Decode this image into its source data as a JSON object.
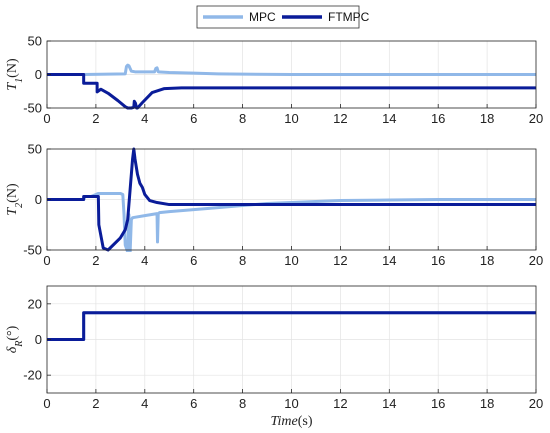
{
  "legend": {
    "items": [
      "MPC",
      "FTMPC"
    ],
    "colors": [
      "#90B8E8",
      "#0A1C99"
    ]
  },
  "chart_data": [
    {
      "type": "line",
      "ylabel": "T1(N)",
      "xlim": [
        0,
        20
      ],
      "ylim": [
        -50,
        50
      ],
      "xticks": [
        0,
        2,
        4,
        6,
        8,
        10,
        12,
        14,
        16,
        18,
        20
      ],
      "yticks": [
        -50,
        0,
        50
      ],
      "grid": true,
      "series": [
        {
          "name": "MPC",
          "x": [
            0,
            1.5,
            3.2,
            3.25,
            3.3,
            3.35,
            3.4,
            3.45,
            3.6,
            4.4,
            4.45,
            4.5,
            4.55,
            5,
            6,
            7,
            8,
            10,
            12,
            14,
            16,
            18,
            20
          ],
          "y": [
            0,
            0,
            1,
            12,
            14,
            13,
            9,
            5,
            4,
            4,
            9,
            10,
            4,
            3,
            2,
            1,
            0.5,
            0,
            0,
            0,
            0,
            0,
            0
          ]
        },
        {
          "name": "FTMPC",
          "x": [
            0,
            1.5,
            1.5,
            2.05,
            2.05,
            2.2,
            2.5,
            2.9,
            3.2,
            3.3,
            3.45,
            3.55,
            3.57,
            3.62,
            3.66,
            3.7,
            3.9,
            4.3,
            4.8,
            5.5,
            20
          ],
          "y": [
            0,
            0,
            -13,
            -13,
            -26,
            -22,
            -28,
            -39,
            -48,
            -50,
            -50,
            -49,
            -40,
            -43,
            -50,
            -50,
            -42,
            -27,
            -21,
            -20,
            -20
          ]
        }
      ]
    },
    {
      "type": "line",
      "ylabel": "T2(N)",
      "xlim": [
        0,
        20
      ],
      "ylim": [
        -50,
        50
      ],
      "xticks": [
        0,
        2,
        4,
        6,
        8,
        10,
        12,
        14,
        16,
        18,
        20
      ],
      "yticks": [
        -50,
        0,
        50
      ],
      "grid": true,
      "series": [
        {
          "name": "MPC",
          "x": [
            0,
            1.5,
            1.55,
            1.8,
            2.0,
            2.1,
            2.5,
            3.0,
            3.1,
            3.15,
            3.2,
            3.3,
            3.35,
            3.4,
            3.45,
            3.5,
            4.0,
            4.5,
            4.52,
            4.55,
            4.6,
            5,
            6,
            7,
            8,
            9,
            10,
            12,
            14,
            16,
            18,
            20
          ],
          "y": [
            0,
            0,
            3,
            3,
            5,
            6,
            6,
            6,
            5,
            -15,
            -45,
            -52,
            -15,
            -52,
            -20,
            -18,
            -16,
            -14,
            -42,
            -14,
            -13,
            -12,
            -10,
            -8,
            -6,
            -4,
            -3,
            -1,
            -0.5,
            0,
            0,
            0
          ]
        },
        {
          "name": "FTMPC",
          "x": [
            0,
            1.5,
            1.5,
            2.1,
            2.12,
            2.3,
            2.5,
            3.0,
            3.2,
            3.3,
            3.4,
            3.5,
            3.55,
            3.6,
            3.7,
            3.8,
            3.9,
            4.0,
            4.2,
            4.5,
            5.0,
            6.0,
            8.0,
            10,
            20
          ],
          "y": [
            0,
            0,
            3,
            3,
            -25,
            -48,
            -50,
            -38,
            -30,
            -20,
            10,
            40,
            50,
            40,
            25,
            16,
            12,
            5,
            -1,
            -3,
            -5,
            -5,
            -5,
            -5,
            -5
          ]
        }
      ]
    },
    {
      "type": "line",
      "ylabel": "δR(°)",
      "xlabel": "Time(s)",
      "xlim": [
        0,
        20
      ],
      "ylim": [
        -30,
        30
      ],
      "xticks": [
        0,
        2,
        4,
        6,
        8,
        10,
        12,
        14,
        16,
        18,
        20
      ],
      "yticks": [
        -20,
        0,
        20
      ],
      "grid": true,
      "series": [
        {
          "name": "MPC",
          "x": [
            0,
            1.5,
            1.5,
            20
          ],
          "y": [
            0,
            0,
            15,
            15
          ]
        },
        {
          "name": "FTMPC",
          "x": [
            0,
            1.5,
            1.5,
            20
          ],
          "y": [
            0,
            0,
            15,
            15
          ]
        }
      ]
    }
  ]
}
